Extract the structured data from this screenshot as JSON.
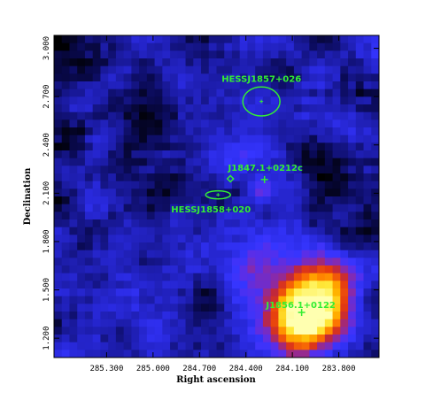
{
  "map": {
    "xlabel": "Right ascension",
    "ylabel": "Declination",
    "xlim": [
      285.64,
      283.54
    ],
    "ylim": [
      1.08,
      3.08
    ],
    "x_ticks": [
      {
        "value": 285.3,
        "label": "285.300"
      },
      {
        "value": 285.0,
        "label": "285.000"
      },
      {
        "value": 284.7,
        "label": "284.700"
      },
      {
        "value": 284.4,
        "label": "284.400"
      },
      {
        "value": 284.1,
        "label": "284.100"
      },
      {
        "value": 283.8,
        "label": "283.800"
      }
    ],
    "y_ticks": [
      {
        "value": 1.2,
        "label": "1.200"
      },
      {
        "value": 1.5,
        "label": "1.500"
      },
      {
        "value": 1.8,
        "label": "1.800"
      },
      {
        "value": 2.1,
        "label": "2.100"
      },
      {
        "value": 2.4,
        "label": "2.400"
      },
      {
        "value": 2.7,
        "label": "2.700"
      },
      {
        "value": 3.0,
        "label": "3.000"
      }
    ],
    "colormap": [
      "#000000",
      "#0a0a55",
      "#1c1ca8",
      "#2a2ae0",
      "#3535ff",
      "#5a2ee8",
      "#8a2aa8",
      "#c0283c",
      "#e43a10",
      "#ff7a00",
      "#ffb800",
      "#ffee40",
      "#ffffb0"
    ],
    "overlay_color": "#33ee33",
    "sources": [
      {
        "id": "hess-j1857",
        "label": "HESSJ1857+026",
        "ra": 284.3,
        "dec": 2.67,
        "marker": "ellipse",
        "rx_deg": 0.12,
        "ry_deg": 0.09
      },
      {
        "id": "j1847",
        "label": "J1847.1+0212c",
        "ra": 284.28,
        "dec": 2.185,
        "marker": "cross"
      },
      {
        "id": "diamond-source",
        "label": "",
        "ra": 284.5,
        "dec": 2.19,
        "marker": "diamond"
      },
      {
        "id": "hess-j1858",
        "label": "HESSJ1858+020",
        "ra": 284.58,
        "dec": 2.09,
        "marker": "ellipse",
        "rx_deg": 0.08,
        "ry_deg": 0.025
      },
      {
        "id": "j1856",
        "label": "J1856.1+0122",
        "ra": 284.04,
        "dec": 1.36,
        "marker": "cross"
      }
    ]
  }
}
